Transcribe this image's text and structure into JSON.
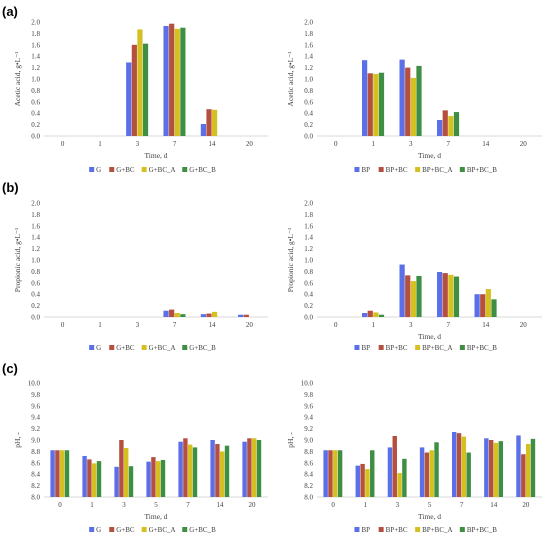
{
  "panel_labels": [
    "(a)",
    "(b)",
    "(c)"
  ],
  "chart_data": [
    {
      "type": "bar",
      "row": 0,
      "col": 0,
      "categories": [
        "0",
        "1",
        "3",
        "7",
        "14",
        "20"
      ],
      "xlabel": "Time, d",
      "ylabel": "Acetic acid, g•L⁻¹",
      "ylim": [
        0,
        2.0
      ],
      "yticks": [
        "0.0",
        "0.2",
        "0.4",
        "0.6",
        "0.8",
        "1.0",
        "1.2",
        "1.4",
        "1.6",
        "1.8",
        "2.0"
      ],
      "grid": false,
      "legend": "bottom",
      "series": [
        {
          "name": "G",
          "color": "#5B6FE8",
          "values": [
            0,
            0,
            1.29,
            1.93,
            0.21,
            0
          ]
        },
        {
          "name": "G+BC",
          "color": "#B5503F",
          "values": [
            0,
            0,
            1.6,
            1.97,
            0.47,
            0
          ]
        },
        {
          "name": "G+BC_A",
          "color": "#D4C021",
          "values": [
            0,
            0,
            1.87,
            1.88,
            0.46,
            0
          ]
        },
        {
          "name": "G+BC_B",
          "color": "#3E8E44",
          "values": [
            0,
            0,
            1.62,
            1.9,
            0,
            0
          ]
        }
      ]
    },
    {
      "type": "bar",
      "row": 0,
      "col": 1,
      "categories": [
        "0",
        "1",
        "3",
        "7",
        "14",
        "20"
      ],
      "xlabel": "Time, d",
      "ylabel": "Acetic acid, g•L⁻¹",
      "ylim": [
        0,
        2.0
      ],
      "yticks": [
        "0.0",
        "0.2",
        "0.4",
        "0.6",
        "0.8",
        "1.0",
        "1.2",
        "1.4",
        "1.6",
        "1.8",
        "2.0"
      ],
      "grid": false,
      "legend": "bottom",
      "series": [
        {
          "name": "BP",
          "color": "#5B6FE8",
          "values": [
            0,
            1.33,
            1.34,
            0.28,
            0,
            0
          ]
        },
        {
          "name": "BP+BC",
          "color": "#B5503F",
          "values": [
            0,
            1.1,
            1.2,
            0.45,
            0,
            0
          ]
        },
        {
          "name": "BP+BC_A",
          "color": "#D4C021",
          "values": [
            0,
            1.09,
            1.02,
            0.35,
            0,
            0
          ]
        },
        {
          "name": "BP+BC_B",
          "color": "#3E8E44",
          "values": [
            0,
            1.11,
            1.23,
            0.42,
            0,
            0
          ]
        }
      ]
    },
    {
      "type": "bar",
      "row": 1,
      "col": 0,
      "categories": [
        "0",
        "1",
        "3",
        "7",
        "14",
        "20"
      ],
      "xlabel": "",
      "ylabel": "Propionic acid, g•L⁻¹",
      "ylim": [
        0,
        2.0
      ],
      "yticks": [
        "0.0",
        "0.2",
        "0.4",
        "0.6",
        "0.8",
        "1.0",
        "1.2",
        "1.4",
        "1.6",
        "1.8",
        "2.0"
      ],
      "grid": false,
      "legend": "bottom",
      "series": [
        {
          "name": "G",
          "color": "#5B6FE8",
          "values": [
            0,
            0,
            0,
            0.11,
            0.05,
            0.04
          ]
        },
        {
          "name": "G+BC",
          "color": "#B5503F",
          "values": [
            0,
            0,
            0,
            0.13,
            0.06,
            0.04
          ]
        },
        {
          "name": "G+BC_A",
          "color": "#D4C021",
          "values": [
            0,
            0,
            0,
            0.07,
            0.09,
            0
          ]
        },
        {
          "name": "G+BC_B",
          "color": "#3E8E44",
          "values": [
            0,
            0,
            0,
            0.05,
            0,
            0
          ]
        }
      ]
    },
    {
      "type": "bar",
      "row": 1,
      "col": 1,
      "categories": [
        "0",
        "1",
        "3",
        "7",
        "14",
        "20"
      ],
      "xlabel": "Time, d",
      "ylabel": "Propionic acid, g•L⁻¹",
      "ylim": [
        0,
        2.0
      ],
      "yticks": [
        "0.0",
        "0.2",
        "0.4",
        "0.6",
        "0.8",
        "1.0",
        "1.2",
        "1.4",
        "1.6",
        "1.8",
        "2.0"
      ],
      "grid": false,
      "legend": "bottom",
      "series": [
        {
          "name": "BP",
          "color": "#5B6FE8",
          "values": [
            0,
            0.07,
            0.92,
            0.79,
            0.4,
            0
          ]
        },
        {
          "name": "BP+BC",
          "color": "#B5503F",
          "values": [
            0,
            0.11,
            0.73,
            0.77,
            0.4,
            0
          ]
        },
        {
          "name": "BP+BC_A",
          "color": "#D4C021",
          "values": [
            0,
            0.08,
            0.63,
            0.74,
            0.49,
            0
          ]
        },
        {
          "name": "BP+BC_B",
          "color": "#3E8E44",
          "values": [
            0,
            0.04,
            0.72,
            0.71,
            0.31,
            0
          ]
        }
      ]
    },
    {
      "type": "bar",
      "row": 2,
      "col": 0,
      "categories": [
        "0",
        "1",
        "3",
        "5",
        "7",
        "14",
        "20"
      ],
      "xlabel": "Time, d",
      "ylabel": "pH, -",
      "ylim": [
        8.0,
        10.0
      ],
      "yticks": [
        "8.0",
        "8.2",
        "8.4",
        "8.6",
        "8.8",
        "9.0",
        "9.2",
        "9.4",
        "9.6",
        "9.8",
        "10.0"
      ],
      "grid": false,
      "legend": "bottom",
      "series": [
        {
          "name": "G",
          "color": "#5B6FE8",
          "values": [
            8.82,
            8.72,
            8.53,
            8.62,
            8.97,
            9.0,
            8.97
          ]
        },
        {
          "name": "G+BC",
          "color": "#B5503F",
          "values": [
            8.82,
            8.66,
            9.0,
            8.7,
            9.03,
            8.93,
            9.03
          ]
        },
        {
          "name": "G+BC_A",
          "color": "#D4C021",
          "values": [
            8.82,
            8.59,
            8.86,
            8.63,
            8.92,
            8.8,
            9.03
          ]
        },
        {
          "name": "G+BC_B",
          "color": "#3E8E44",
          "values": [
            8.82,
            8.63,
            8.54,
            8.65,
            8.87,
            8.9,
            9.0
          ]
        }
      ]
    },
    {
      "type": "bar",
      "row": 2,
      "col": 1,
      "categories": [
        "0",
        "1",
        "3",
        "5",
        "7",
        "14",
        "20"
      ],
      "xlabel": "Time, d",
      "ylabel": "pH, -",
      "ylim": [
        8.0,
        10.0
      ],
      "yticks": [
        "8.0",
        "8.2",
        "8.4",
        "8.6",
        "8.8",
        "9.0",
        "9.2",
        "9.4",
        "9.6",
        "9.8",
        "10.0"
      ],
      "grid": false,
      "legend": "bottom",
      "series": [
        {
          "name": "BP",
          "color": "#5B6FE8",
          "values": [
            8.82,
            8.55,
            8.87,
            8.87,
            9.14,
            9.03,
            9.08
          ]
        },
        {
          "name": "BP+BC",
          "color": "#B5503F",
          "values": [
            8.82,
            8.58,
            9.07,
            8.78,
            9.12,
            9.0,
            8.75
          ]
        },
        {
          "name": "BP+BC_A",
          "color": "#D4C021",
          "values": [
            8.82,
            8.49,
            8.42,
            8.82,
            9.06,
            8.95,
            8.93
          ]
        },
        {
          "name": "BP+BC_B",
          "color": "#3E8E44",
          "values": [
            8.82,
            8.82,
            8.67,
            8.96,
            8.78,
            8.98,
            9.02
          ]
        }
      ]
    }
  ]
}
